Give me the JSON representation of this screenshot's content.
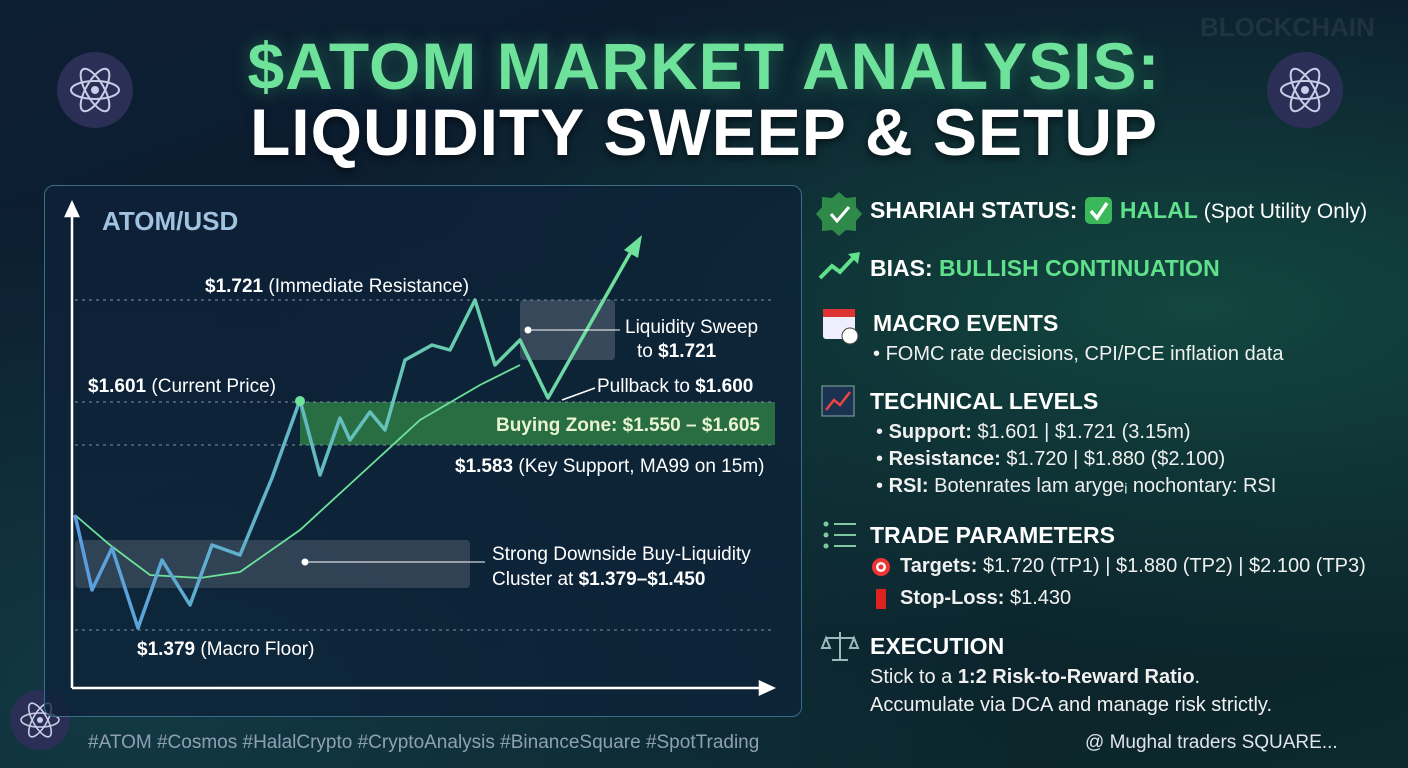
{
  "header": {
    "title_line1": "$ATOM MARKET ANALYSIS:",
    "title_line2": "LIQUIDITY SWEEP & SETUP",
    "background_word": "BLOCKCHAIN"
  },
  "chart": {
    "label": "ATOM/USD",
    "annotations": [
      {
        "price": "$1.721",
        "note": "(Immediate Resistance)"
      },
      {
        "price": "$1.601",
        "note": "(Current Price)"
      },
      {
        "price": "$1.583",
        "note": "(Key Support, MA99 on 15m)"
      },
      {
        "price": "$1.379",
        "note": "(Macro Floor)"
      }
    ],
    "sweep": {
      "line1": "Liquidity Sweep",
      "prefix": "to",
      "price": "$1.721"
    },
    "pullback": {
      "prefix": "Pullback to",
      "price": "$1.600"
    },
    "buying_zone": "Buying Zone: $1.550 – $1.605",
    "cluster": {
      "line1": "Strong Downside Buy-Liquidity",
      "prefix": "Cluster at",
      "range": "$1.379–$1.450"
    }
  },
  "panel": {
    "shariah": {
      "label": "SHARIAH STATUS:",
      "status": "HALAL",
      "note": "(Spot Utility Only)"
    },
    "bias": {
      "label": "BIAS:",
      "value": "BULLISH CONTINUATION"
    },
    "macro": {
      "title": "MACRO EVENTS",
      "items": [
        "FOMC rate decisions, CPI/PCE inflation data"
      ]
    },
    "technical": {
      "title": "TECHNICAL LEVELS",
      "rows": [
        {
          "label": "Support:",
          "text": "$1.601 | $1.721 (3.15m)"
        },
        {
          "label": "Resistance:",
          "text": "$1.720 | $1.880 ($2.100)"
        },
        {
          "label": "RSI:",
          "text": "Botenrates lam arygeᵢ nochontary: RSI"
        }
      ]
    },
    "trade": {
      "title": "TRADE PARAMETERS",
      "rows": [
        {
          "label": "Targets:",
          "text": "$1.720 (TP1) | $1.880 (TP2) | $2.100 (TP3)"
        },
        {
          "label": "Stop-Loss:",
          "text": "$1.430"
        }
      ]
    },
    "execution": {
      "title": "EXECUTION",
      "line1_prefix": "Stick to a",
      "line1_bold": "1:2 Risk-to-Reward Ratio",
      "line1_suffix": ".",
      "line2": "Accumulate via DCA and manage risk strictly."
    }
  },
  "footer": {
    "hashtags": "#ATOM #Cosmos #HalalCrypto #CryptoAnalysis #BinanceSquare #SpotTrading",
    "watermark": "@ Mughal traders SQUARE..."
  }
}
